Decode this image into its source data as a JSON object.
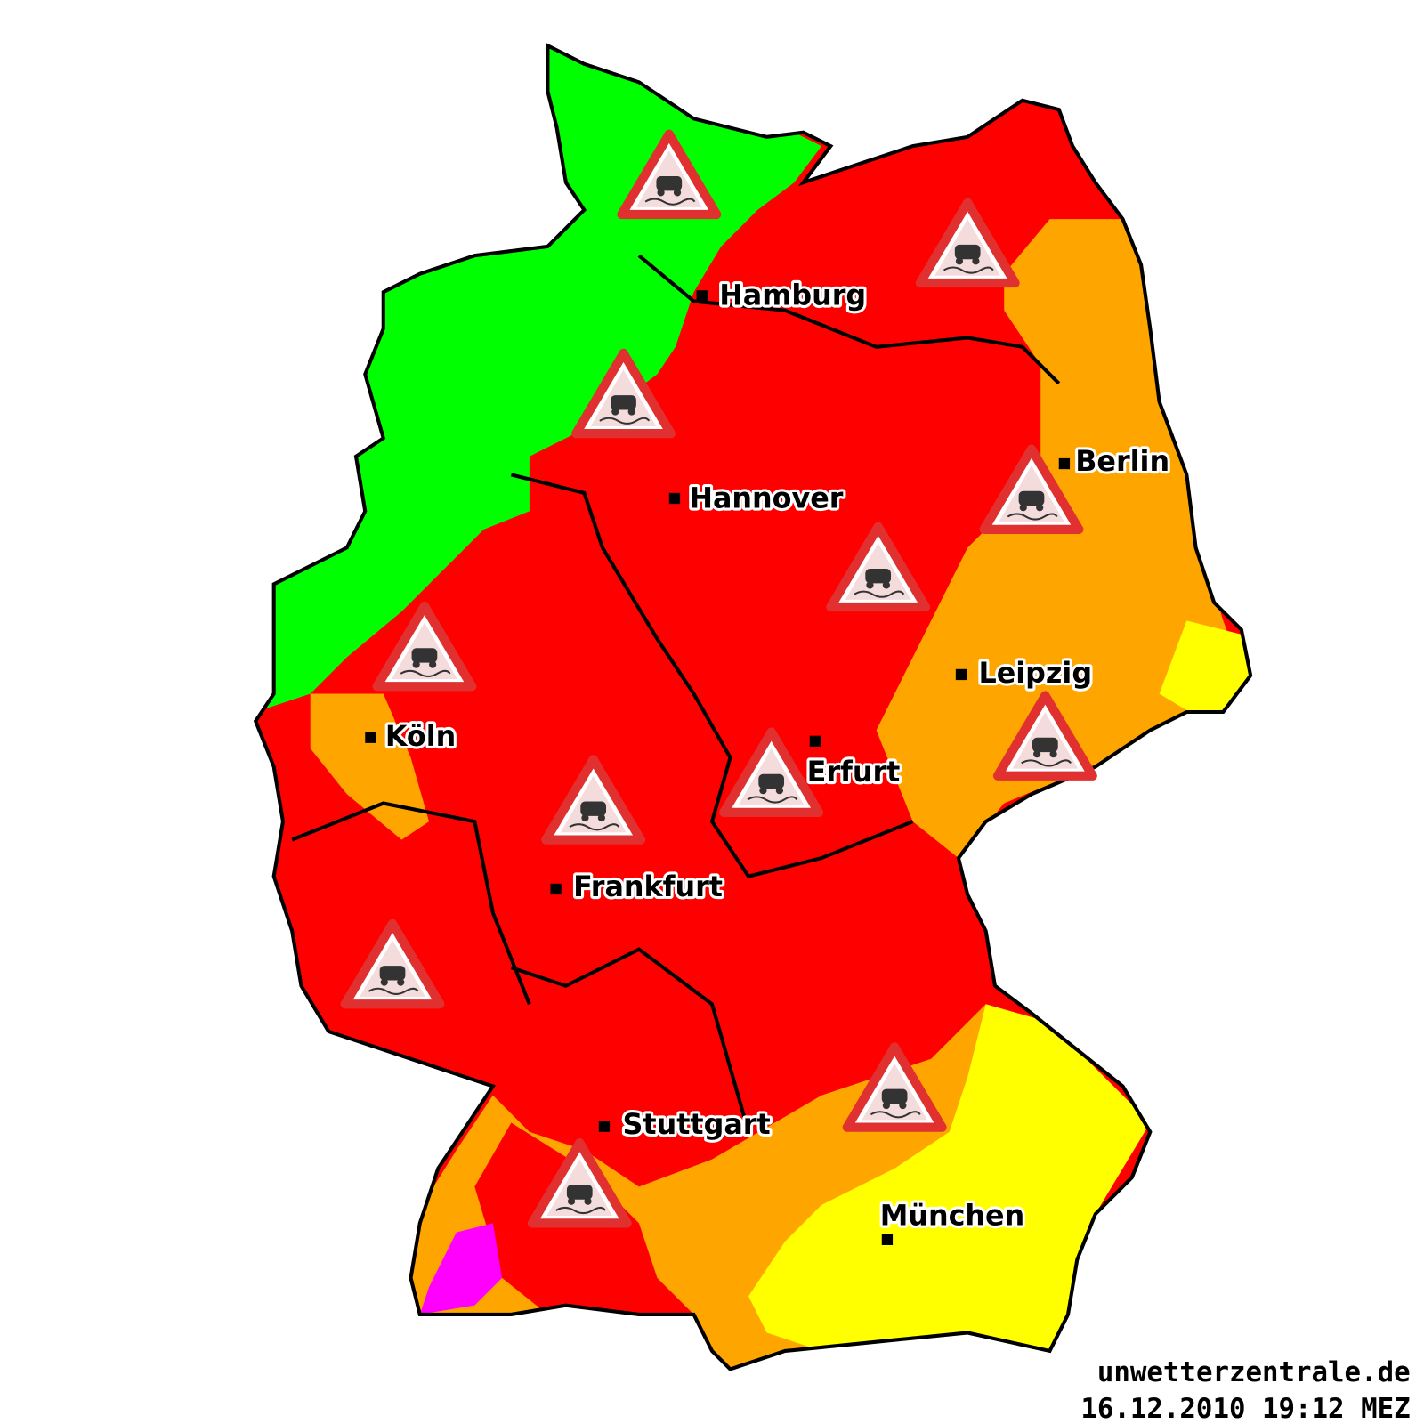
{
  "cities": [
    {
      "label": "Hamburg"
    },
    {
      "label": "Berlin"
    },
    {
      "label": "Hannover"
    },
    {
      "label": "Leipzig"
    },
    {
      "label": "Köln"
    },
    {
      "label": "Erfurt"
    },
    {
      "label": "Frankfurt"
    },
    {
      "label": "Stuttgart"
    },
    {
      "label": "München"
    }
  ],
  "footer": {
    "site": "unwetterzentrale.de",
    "timestamp": "16.12.2010 19:12 MEZ"
  }
}
